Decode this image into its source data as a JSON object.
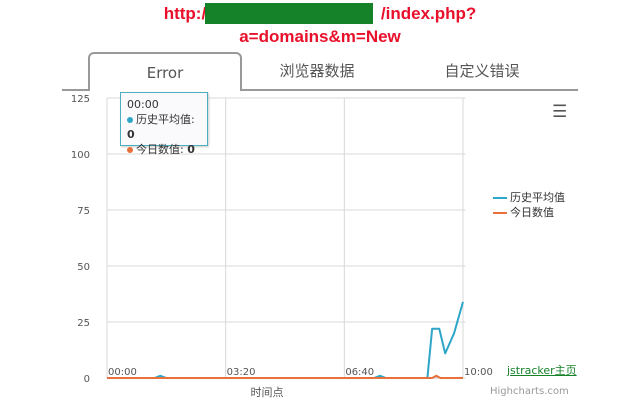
{
  "url": {
    "line1_prefix": "http://",
    "line1_suffix": "/index.php?",
    "line2": "a=domains&m=New"
  },
  "tabs": [
    {
      "label": "Error",
      "active": true
    },
    {
      "label": "浏览器数据"
    },
    {
      "label": "自定义错误"
    }
  ],
  "tooltip": {
    "time": "00:00",
    "items": [
      {
        "name": "历史平均值",
        "value": "0"
      },
      {
        "name": "今日数值",
        "value": "0"
      }
    ]
  },
  "menu_icon": "hamburger-icon",
  "link": "jstracker主页",
  "credit": "Highcharts.com",
  "chart_data": {
    "type": "line",
    "xlabel": "时间点",
    "ylabel": "",
    "xlim": [
      "00:00",
      "10:00"
    ],
    "ylim": [
      0,
      125
    ],
    "xticks": [
      "00:00",
      "03:20",
      "06:40",
      "10:00"
    ],
    "yticks": [
      0,
      25,
      50,
      75,
      100,
      125
    ],
    "grid": true,
    "legend_placement": "right",
    "series": [
      {
        "name": "历史平均值",
        "color": "#2ea6c8",
        "points": [
          [
            "00:00",
            0
          ],
          [
            "01:20",
            0
          ],
          [
            "01:30",
            1
          ],
          [
            "01:40",
            0
          ],
          [
            "07:30",
            0
          ],
          [
            "07:40",
            1
          ],
          [
            "07:50",
            0
          ],
          [
            "09:00",
            0
          ],
          [
            "09:08",
            22
          ],
          [
            "09:20",
            22
          ],
          [
            "09:30",
            11
          ],
          [
            "09:45",
            20
          ],
          [
            "10:00",
            34
          ]
        ]
      },
      {
        "name": "今日数值",
        "color": "#e8703a",
        "points": [
          [
            "00:00",
            0
          ],
          [
            "09:08",
            0
          ],
          [
            "09:15",
            1
          ],
          [
            "09:22",
            0
          ],
          [
            "10:00",
            0
          ]
        ]
      }
    ]
  }
}
